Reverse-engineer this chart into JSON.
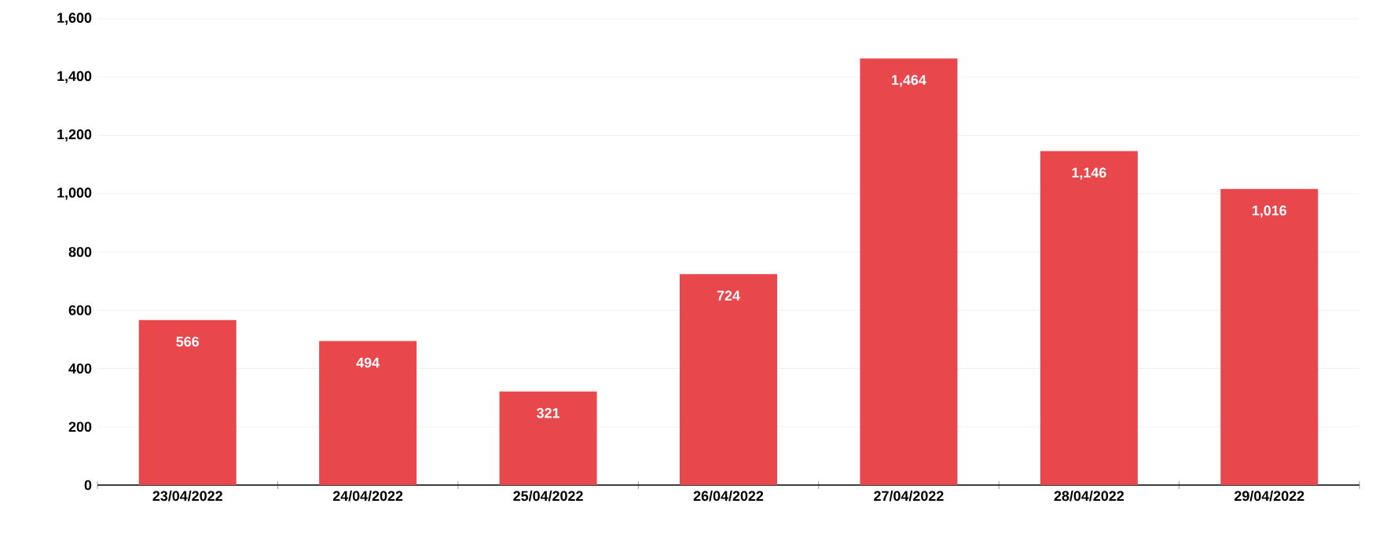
{
  "chart_data": {
    "type": "bar",
    "categories": [
      "23/04/2022",
      "24/04/2022",
      "25/04/2022",
      "26/04/2022",
      "27/04/2022",
      "28/04/2022",
      "29/04/2022"
    ],
    "values": [
      566,
      494,
      321,
      724,
      1464,
      1146,
      1016
    ],
    "value_labels": [
      "566",
      "494",
      "321",
      "724",
      "1,464",
      "1,146",
      "1,016"
    ],
    "color": "#e8474b",
    "ylim": [
      0,
      1600
    ],
    "yticks": [
      0,
      200,
      400,
      600,
      800,
      {
        "value": 1000,
        "label": "1,000"
      },
      {
        "value": 1200,
        "label": "1,200"
      },
      {
        "value": 1400,
        "label": "1,400"
      },
      {
        "value": 1600,
        "label": "1,600"
      }
    ],
    "grid": "y"
  }
}
